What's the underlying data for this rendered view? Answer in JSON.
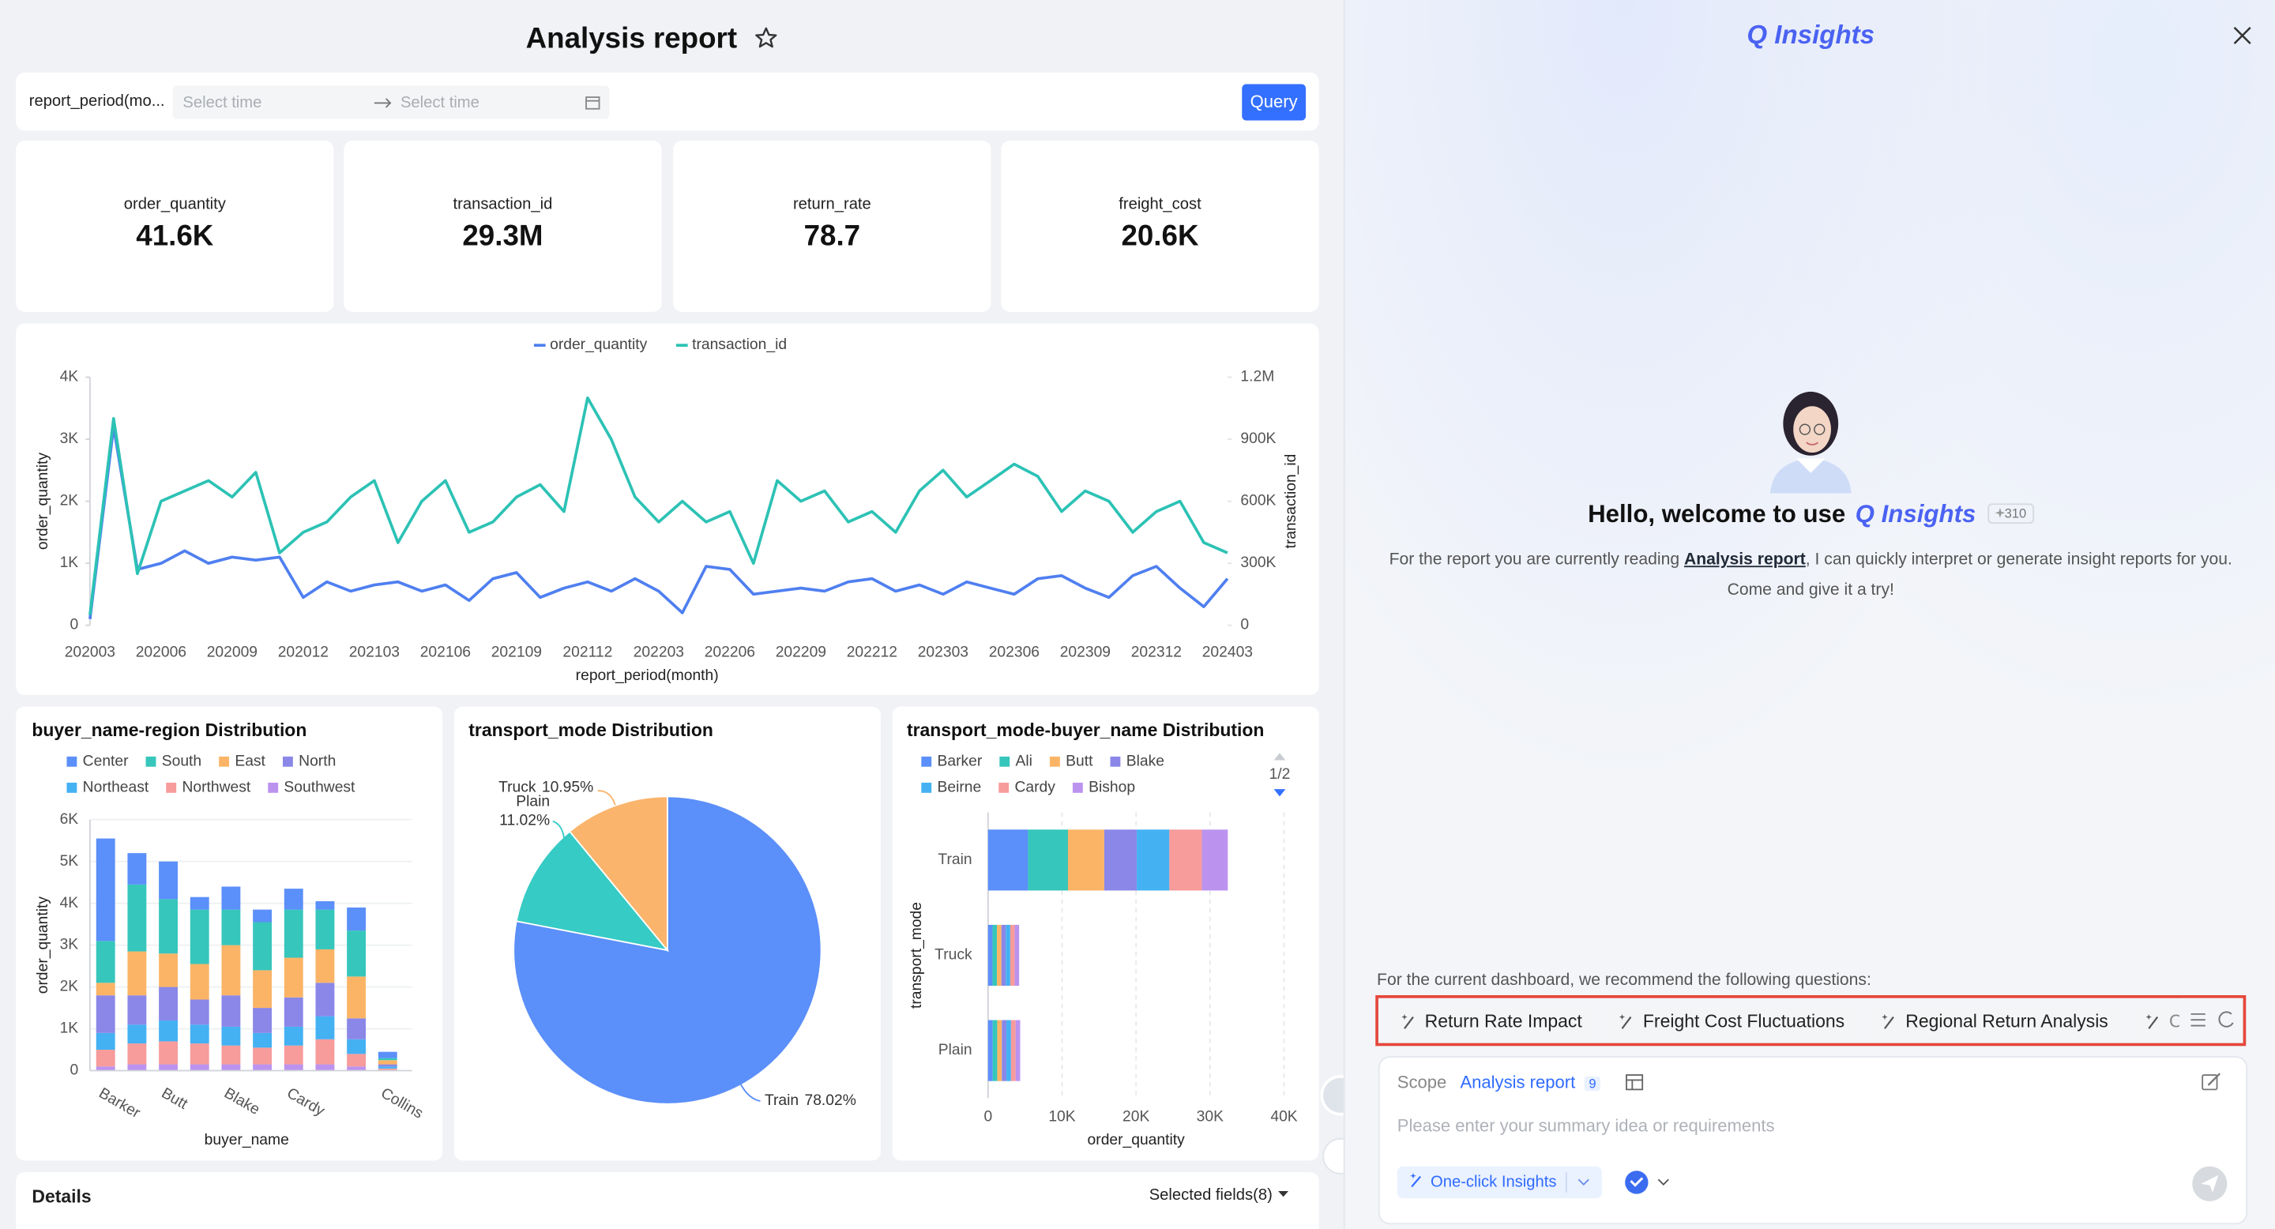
{
  "header": {
    "title": "Analysis report"
  },
  "filter": {
    "field": "report_period(mo...",
    "start_placeholder": "Select time",
    "end_placeholder": "Select time",
    "button": "Query"
  },
  "kpis": [
    {
      "label": "order_quantity",
      "value": "41.6K"
    },
    {
      "label": "transaction_id",
      "value": "29.3M"
    },
    {
      "label": "return_rate",
      "value": "78.7"
    },
    {
      "label": "freight_cost",
      "value": "20.6K"
    }
  ],
  "chart_data": [
    {
      "type": "line",
      "categories": [
        "202003",
        null,
        null,
        "202006",
        null,
        null,
        "202009",
        null,
        null,
        "202012",
        null,
        null,
        "202103",
        null,
        null,
        "202106",
        null,
        null,
        "202109",
        null,
        null,
        "202112",
        null,
        null,
        "202203",
        null,
        null,
        "202206",
        null,
        null,
        "202209",
        null,
        null,
        "202212",
        null,
        null,
        "202303",
        null,
        null,
        "202306",
        null,
        null,
        "202309",
        null,
        null,
        "202312",
        null,
        null,
        "202403"
      ],
      "xlabel": "report_period(month)",
      "ylabel": "order_quantity",
      "y2label": "transaction_id",
      "ylim": [
        0,
        4000
      ],
      "yticks": [
        0,
        {
          "value": 1000,
          "label": "1K"
        },
        {
          "value": 2000,
          "label": "2K"
        },
        {
          "value": 3000,
          "label": "3K"
        },
        {
          "value": 4000,
          "label": "4K"
        }
      ],
      "y2lim": [
        0,
        1200000
      ],
      "y2ticks": [
        0,
        {
          "value": 300000,
          "label": "300K"
        },
        {
          "value": 600000,
          "label": "600K"
        },
        {
          "value": 900000,
          "label": "900K"
        },
        {
          "value": 1200000,
          "label": "1.2M"
        }
      ],
      "legend": "top",
      "series": [
        {
          "name": "order_quantity",
          "color": "#4f7ff0",
          "values": [
            100,
            3200,
            900,
            1000,
            1200,
            1000,
            1100,
            1050,
            1100,
            450,
            700,
            550,
            650,
            700,
            550,
            650,
            400,
            750,
            850,
            450,
            600,
            700,
            550,
            750,
            550,
            200,
            950,
            900,
            500,
            550,
            600,
            550,
            700,
            750,
            550,
            650,
            500,
            700,
            600,
            500,
            750,
            800,
            600,
            450,
            800,
            950,
            600,
            300,
            750
          ]
        },
        {
          "name": "transaction_id",
          "color": "#2cc2b5",
          "axis": "y2",
          "values": [
            50000,
            1000000,
            250000,
            600000,
            650000,
            700000,
            620000,
            740000,
            350000,
            450000,
            500000,
            620000,
            700000,
            400000,
            600000,
            700000,
            450000,
            500000,
            620000,
            680000,
            550000,
            1100000,
            900000,
            620000,
            500000,
            600000,
            500000,
            550000,
            300000,
            700000,
            600000,
            650000,
            500000,
            550000,
            450000,
            650000,
            750000,
            620000,
            700000,
            780000,
            720000,
            550000,
            650000,
            600000,
            450000,
            550000,
            600000,
            400000,
            350000
          ]
        }
      ]
    },
    {
      "type": "bar",
      "stacked": true,
      "title": "buyer_name-region Distribution",
      "categories": [
        "Barker",
        null,
        "Butt",
        null,
        "Blake",
        null,
        "Cardy",
        null,
        null,
        "Collins"
      ],
      "xlabel": "buyer_name",
      "ylabel": "order_quantity",
      "ylim": [
        0,
        6000
      ],
      "yticks": [
        0,
        {
          "value": 1000,
          "label": "1K"
        },
        {
          "value": 2000,
          "label": "2K"
        },
        {
          "value": 3000,
          "label": "3K"
        },
        {
          "value": 4000,
          "label": "4K"
        },
        {
          "value": 5000,
          "label": "5K"
        },
        {
          "value": 6000,
          "label": "6K"
        }
      ],
      "grid": true,
      "series": [
        {
          "name": "Center",
          "color": "#5b8ff9",
          "values": [
            2450,
            750,
            900,
            300,
            550,
            300,
            500,
            200,
            550,
            150
          ]
        },
        {
          "name": "South",
          "color": "#36c6bc",
          "values": [
            1000,
            1600,
            1300,
            1300,
            850,
            1150,
            1150,
            950,
            1100,
            50
          ]
        },
        {
          "name": "East",
          "color": "#fbb466",
          "values": [
            300,
            1050,
            800,
            850,
            1200,
            900,
            950,
            800,
            1000,
            100
          ]
        },
        {
          "name": "North",
          "color": "#8a87e8",
          "values": [
            900,
            700,
            800,
            600,
            750,
            600,
            700,
            800,
            500,
            50
          ]
        },
        {
          "name": "Northeast",
          "color": "#44b1f3",
          "values": [
            400,
            450,
            500,
            450,
            450,
            350,
            450,
            550,
            350,
            50
          ]
        },
        {
          "name": "Northwest",
          "color": "#f79b9b",
          "values": [
            400,
            500,
            550,
            500,
            450,
            400,
            450,
            600,
            300,
            50
          ]
        },
        {
          "name": "Southwest",
          "color": "#bb93ef",
          "values": [
            100,
            150,
            150,
            150,
            150,
            150,
            150,
            150,
            100,
            0
          ]
        }
      ]
    },
    {
      "type": "pie",
      "title": "transport_mode Distribution",
      "categories": [
        "Train",
        "Plain",
        "Truck"
      ],
      "values": [
        78.02,
        11.02,
        10.95
      ],
      "value_labels": [
        "78.02%",
        "11.02%",
        "10.95%"
      ],
      "colors": [
        "#5b8ff9",
        "#36cbc4",
        "#fbb46c"
      ]
    },
    {
      "type": "hbar",
      "stacked": true,
      "title": "transport_mode-buyer_name Distribution",
      "categories": [
        "Train",
        "Truck",
        "Plain"
      ],
      "xlabel": "order_quantity",
      "ylabel": "transport_mode",
      "xlim": [
        0,
        40000
      ],
      "xticks": [
        0,
        {
          "value": 10000,
          "label": "10K"
        },
        {
          "value": 20000,
          "label": "20K"
        },
        {
          "value": 30000,
          "label": "30K"
        },
        {
          "value": 40000,
          "label": "40K"
        }
      ],
      "grid": true,
      "legend_page": "1/2",
      "series": [
        {
          "name": "Barker",
          "color": "#5b8ff9",
          "values": [
            5400,
            600,
            620
          ]
        },
        {
          "name": "Ali",
          "color": "#36c6bc",
          "values": [
            5400,
            600,
            620
          ]
        },
        {
          "name": "Butt",
          "color": "#fbb466",
          "values": [
            4900,
            600,
            620
          ]
        },
        {
          "name": "Blake",
          "color": "#8a87e8",
          "values": [
            4400,
            600,
            620
          ]
        },
        {
          "name": "Beirne",
          "color": "#44b1f3",
          "values": [
            4400,
            600,
            620
          ]
        },
        {
          "name": "Cardy",
          "color": "#f79b9b",
          "values": [
            4400,
            600,
            620
          ]
        },
        {
          "name": "Bishop",
          "color": "#bb93ef",
          "values": [
            3500,
            600,
            620
          ]
        }
      ]
    }
  ],
  "details": {
    "title": "Details",
    "fields": "Selected fields(8)"
  },
  "assistant": {
    "brand": "Q Insights",
    "greeting": "Hello, welcome to use",
    "greeting_brand": "Q Insights",
    "badge": "310",
    "intro_before": "For the report you are currently reading",
    "intro_link": "Analysis report",
    "intro_after": ", I can quickly interpret or generate insight reports for you.",
    "intro_line2": "Come and give it a try!",
    "recommend": "For the current dashboard, we recommend the following questions:",
    "questions": [
      "Return Rate Impact",
      "Freight Cost Fluctuations",
      "Regional Return Analysis",
      "Ord"
    ],
    "scope_label": "Scope",
    "scope_value": "Analysis report",
    "scope_count": "9",
    "placeholder": "Please enter your summary idea or requirements",
    "action": "One-click Insights"
  }
}
